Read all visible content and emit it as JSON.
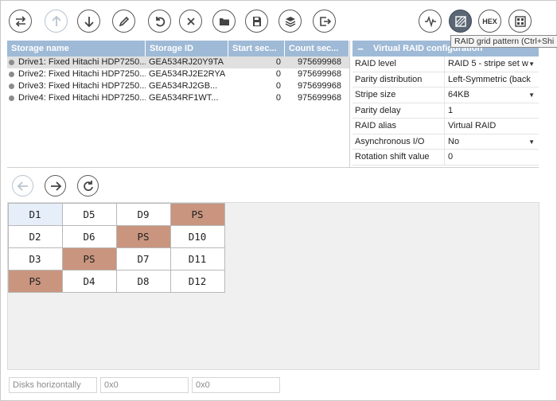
{
  "toolbar": {
    "buttons": [
      {
        "name": "swap-icon"
      },
      {
        "name": "move-up-icon"
      },
      {
        "name": "move-down-icon"
      },
      {
        "name": "edit-icon"
      },
      {
        "name": "undo-icon"
      },
      {
        "name": "close-icon"
      },
      {
        "name": "folder-icon"
      },
      {
        "name": "save-icon"
      },
      {
        "name": "layers-icon"
      },
      {
        "name": "export-icon"
      }
    ],
    "right_buttons": [
      {
        "name": "waveform-icon"
      },
      {
        "name": "grid-pattern-icon"
      },
      {
        "name": "hex-icon",
        "label": "HEX"
      },
      {
        "name": "blocks-icon"
      }
    ],
    "tooltip": "RAID grid pattern (Ctrl+Shi"
  },
  "storage": {
    "headers": [
      "Storage name",
      "Storage ID",
      "Start sec...",
      "Count sec..."
    ],
    "rows": [
      {
        "name": "Drive1: Fixed Hitachi HDP7250...",
        "id": "GEA534RJ20Y9TA",
        "start": "0",
        "count": "975699968",
        "selected": true
      },
      {
        "name": "Drive2: Fixed Hitachi HDP7250...",
        "id": "GEA534RJ2E2RYA",
        "start": "0",
        "count": "975699968"
      },
      {
        "name": "Drive3: Fixed Hitachi HDP7250...",
        "id": "GEA534RJ2GB...",
        "start": "0",
        "count": "975699968"
      },
      {
        "name": "Drive4: Fixed Hitachi HDP7250...",
        "id": "GEA534RF1WT...",
        "start": "0",
        "count": "975699968"
      }
    ]
  },
  "props": {
    "collapse_symbol": "−",
    "title": "Virtual RAID configuration",
    "rows": [
      {
        "key": "RAID level",
        "value": "RAID 5 - stripe set w",
        "dropdown": true
      },
      {
        "key": "Parity distribution",
        "value": "Left-Symmetric (back",
        "dropdown": false
      },
      {
        "key": "Stripe size",
        "value": "64KB",
        "dropdown": true
      },
      {
        "key": "Parity delay",
        "value": "1",
        "dropdown": false
      },
      {
        "key": "RAID alias",
        "value": "Virtual RAID",
        "dropdown": false
      },
      {
        "key": "Asynchronous I/O",
        "value": "No",
        "dropdown": true
      },
      {
        "key": "Rotation shift value",
        "value": "0",
        "dropdown": false
      }
    ]
  },
  "grid": {
    "rows": [
      [
        "D1",
        "D5",
        "D9",
        "PS"
      ],
      [
        "D2",
        "D6",
        "PS",
        "D10"
      ],
      [
        "D3",
        "PS",
        "D7",
        "D11"
      ],
      [
        "PS",
        "D4",
        "D8",
        "D12"
      ]
    ],
    "parity_color": "#c9957e",
    "highlight_color": "#e6eefa"
  },
  "bottom": {
    "layout_label": "Disks horizontally",
    "field1": "0x0",
    "field2": "0x0"
  }
}
